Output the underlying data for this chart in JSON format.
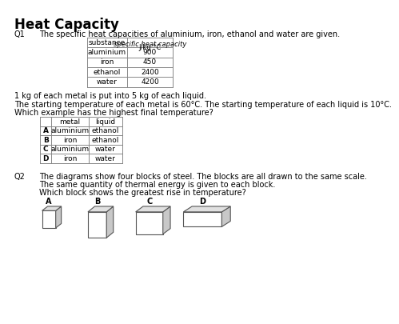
{
  "title": "Heat Capacity",
  "q1_label": "Q1",
  "q1_text": "The specific heat capacities of aluminium, iron, ethanol and water are given.",
  "table1_header1": "substance",
  "table1_header2_line1": "specific heat capacity",
  "table1_header2_line2": "J/kg °C",
  "table1_rows": [
    [
      "aluminium",
      "900"
    ],
    [
      "iron",
      "450"
    ],
    [
      "ethanol",
      "2400"
    ],
    [
      "water",
      "4200"
    ]
  ],
  "q1_note1": "1 kg of each metal is put into 5 kg of each liquid.",
  "q1_note2": "The starting temperature of each metal is 60°C. The starting temperature of each liquid is 10°C.",
  "q1_note3": "Which example has the highest final temperature?",
  "table2_headers": [
    "",
    "metal",
    "liquid"
  ],
  "table2_rows": [
    [
      "A",
      "aluminium",
      "ethanol"
    ],
    [
      "B",
      "iron",
      "ethanol"
    ],
    [
      "C",
      "aluminium",
      "water"
    ],
    [
      "D",
      "iron",
      "water"
    ]
  ],
  "q2_label": "Q2",
  "q2_text1": "The diagrams show four blocks of steel. The blocks are all drawn to the same scale.",
  "q2_text2": "The same quantity of thermal energy is given to each block.",
  "q2_text3": "Which block shows the greatest rise in temperature?",
  "block_labels": [
    "A",
    "B",
    "C",
    "D"
  ],
  "background_color": "#ffffff",
  "text_color": "#000000",
  "line_color": "#888888"
}
